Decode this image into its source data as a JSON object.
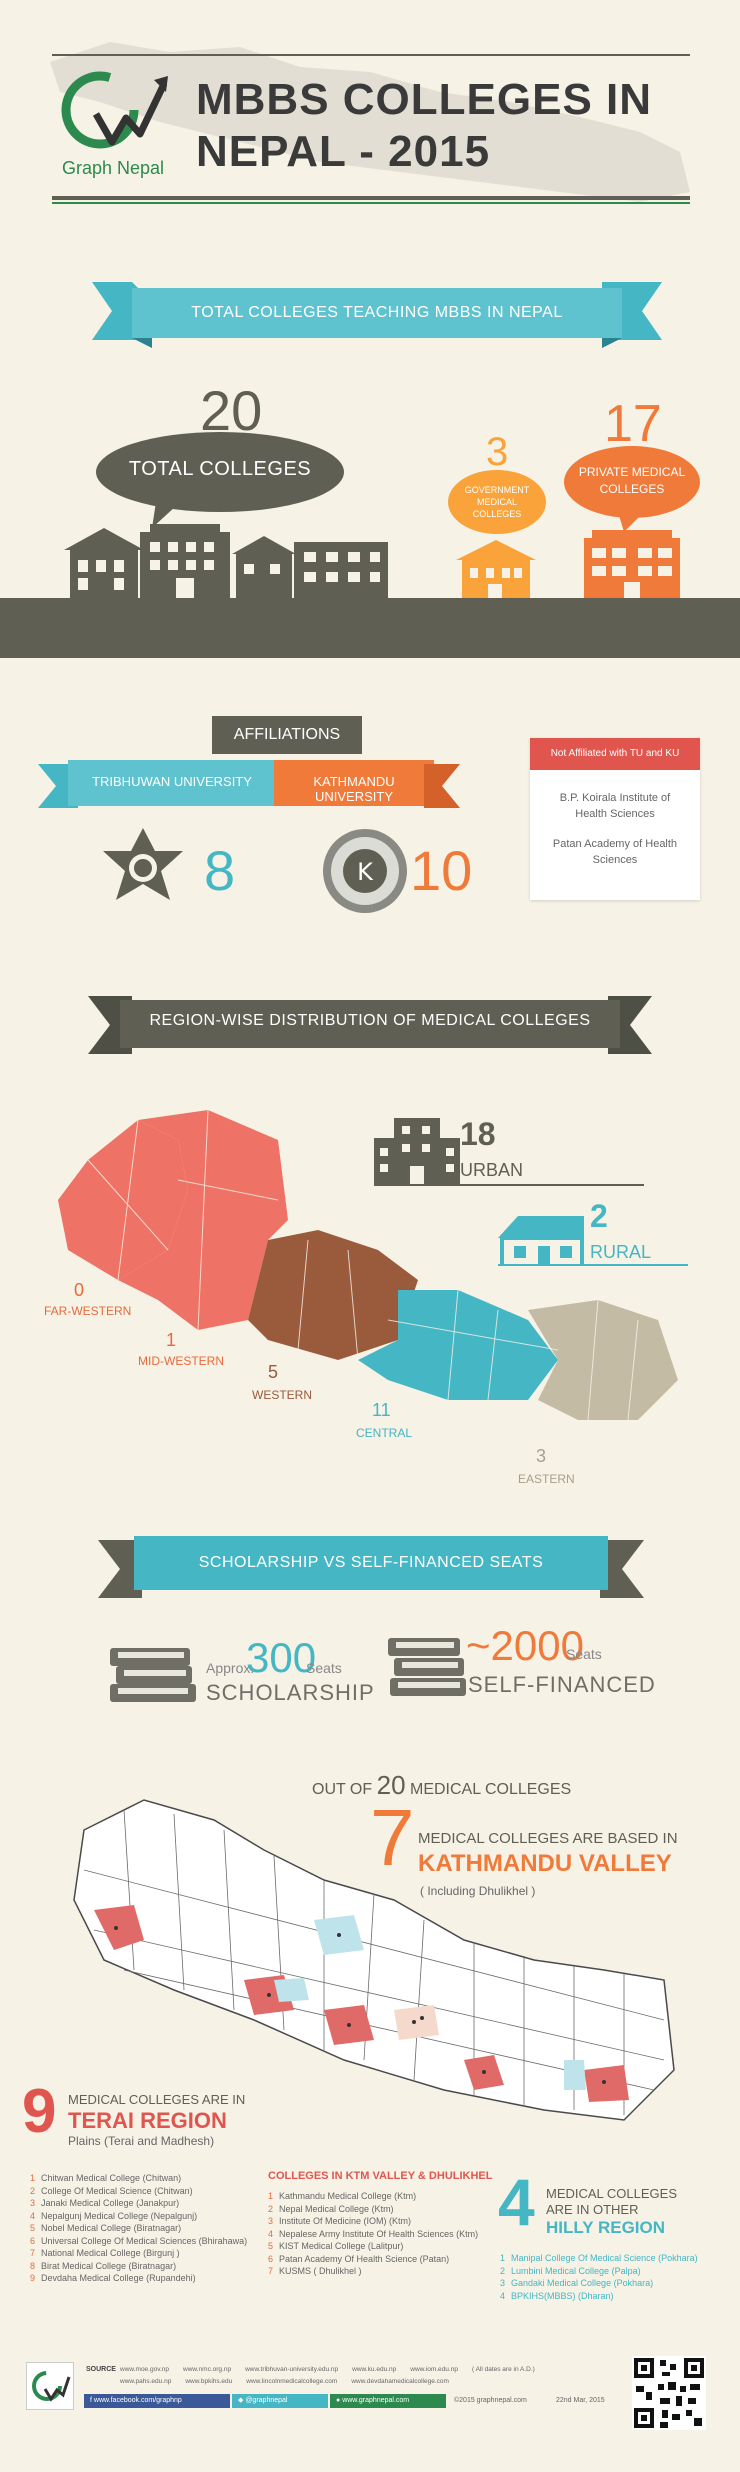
{
  "header": {
    "logo_letters": "GN",
    "logo_text": "Graph Nepal",
    "title_line1": "MBBS COLLEGES IN",
    "title_line2": "NEPAL - 2015"
  },
  "total_section": {
    "ribbon": "TOTAL COLLEGES TEACHING MBBS IN NEPAL",
    "total_num": "20",
    "total_label": "TOTAL COLLEGES",
    "gov_num": "3",
    "gov_label": "GOVERNMENT MEDICAL COLLEGES",
    "private_num": "17",
    "private_label": "PRIVATE MEDICAL COLLEGES"
  },
  "affiliations": {
    "title": "AFFILIATIONS",
    "tu_label": "TRIBHUWAN UNIVERSITY",
    "ku_label": "KATHMANDU UNIVERSITY",
    "tu_count": "8",
    "ku_count": "10",
    "not_affiliated_title": "Not Affiliated with TU and KU",
    "not_affiliated_1": "B.P. Koirala Institute of Health Sciences",
    "not_affiliated_2": "Patan Academy of Health Sciences"
  },
  "regions": {
    "ribbon": "REGION-WISE DISTRIBUTION OF MEDICAL COLLEGES",
    "far_western_num": "0",
    "far_western": "FAR-WESTERN",
    "mid_western_num": "1",
    "mid_western": "MID-WESTERN",
    "western_num": "5",
    "western": "WESTERN",
    "central_num": "11",
    "central": "CENTRAL",
    "eastern_num": "3",
    "eastern": "EASTERN",
    "urban_num": "18",
    "urban": "URBAN",
    "rural_num": "2",
    "rural": "RURAL"
  },
  "seats": {
    "ribbon": "SCHOLARSHIP VS SELF-FINANCED  SEATS",
    "approx": "Approx.",
    "scholarship_num": "300",
    "scholarship_unit": "Seats",
    "scholarship": "SCHOLARSHIP",
    "self_num": "~2000",
    "self_unit": "Seats",
    "self_financed": "SELF-FINANCED"
  },
  "valley": {
    "out_of_prefix": "OUT OF",
    "out_of_num": "20",
    "out_of_suffix": "MEDICAL COLLEGES",
    "num": "7",
    "line1": "MEDICAL COLLEGES ARE BASED IN",
    "line2": "KATHMANDU VALLEY",
    "line3": "( Including Dhulikhel )"
  },
  "terai": {
    "num": "9",
    "line1": "MEDICAL COLLEGES ARE IN",
    "line2": "TERAI REGION",
    "line3": "Plains (Terai and Madhesh)",
    "list": [
      {
        "n": "1",
        "name": "Chitwan Medical College (Chitwan)"
      },
      {
        "n": "2",
        "name": "College Of Medical Science (Chitwan)"
      },
      {
        "n": "3",
        "name": "Janaki Medical College (Janakpur)"
      },
      {
        "n": "4",
        "name": "Nepalgunj Medical College (Nepalgunj)"
      },
      {
        "n": "5",
        "name": "Nobel Medical College (Biratnagar)"
      },
      {
        "n": "6",
        "name": "Universal College Of Medical Sciences (Bhirahawa)"
      },
      {
        "n": "7",
        "name": "National Medical College (Birgunj )"
      },
      {
        "n": "8",
        "name": "Birat Medical College (Biratnagar)"
      },
      {
        "n": "9",
        "name": "Devdaha Medical College (Rupandehi)"
      }
    ]
  },
  "ktm": {
    "title": "COLLEGES IN KTM VALLEY & DHULIKHEL",
    "list": [
      {
        "n": "1",
        "name": "Kathmandu Medical College (Ktm)"
      },
      {
        "n": "2",
        "name": "Nepal Medical College (Ktm)"
      },
      {
        "n": "3",
        "name": "Institute Of Medicine (IOM) (Ktm)"
      },
      {
        "n": "4",
        "name": "Nepalese Army Institute Of Health Sciences (Ktm)"
      },
      {
        "n": "5",
        "name": "KIST Medical College (Lalitpur)"
      },
      {
        "n": "6",
        "name": "Patan Academy Of Health Science (Patan)"
      },
      {
        "n": "7",
        "name": "KUSMS ( Dhulikhel )"
      }
    ]
  },
  "hilly": {
    "num": "4",
    "line1": "MEDICAL COLLEGES",
    "line2": "ARE IN OTHER",
    "line3": "HILLY REGION",
    "list": [
      {
        "n": "1",
        "name": "Manipal College Of Medical Science (Pokhara)"
      },
      {
        "n": "2",
        "name": "Lumbini Medical College (Palpa)"
      },
      {
        "n": "3",
        "name": "Gandaki Medical College (Pokhara)"
      },
      {
        "n": "4",
        "name": "BPKIHS(MBBS) (Dharan)"
      }
    ]
  },
  "footer": {
    "source_label": "SOURCE",
    "sources_row1": [
      "www.moe.gov.np",
      "www.nmc.org.np",
      "www.tribhuvan-university.edu.np",
      "www.ku.edu.np",
      "www.iom.edu.np",
      "( All dates are in  A.D.)"
    ],
    "sources_row2": [
      "www.pahs.edu.np",
      "www.bpkihs.edu",
      "www.lincolnmedicalcollege.com",
      "www.devdahamedicalcollege.com"
    ],
    "facebook": "www.facebook.com/graphnp",
    "twitter": "@graphnepal",
    "website": "www.graphnepal.com",
    "copyright": "©2015 graphnepal.com",
    "date": "22nd Mar, 2015"
  },
  "colors": {
    "teal": "#45b6c4",
    "orange": "#f07a39",
    "olive": "#5f6053",
    "red": "#e0564e",
    "brown": "#9a5a3c",
    "salmon": "#ee7266",
    "grey": "#c4bba5"
  }
}
